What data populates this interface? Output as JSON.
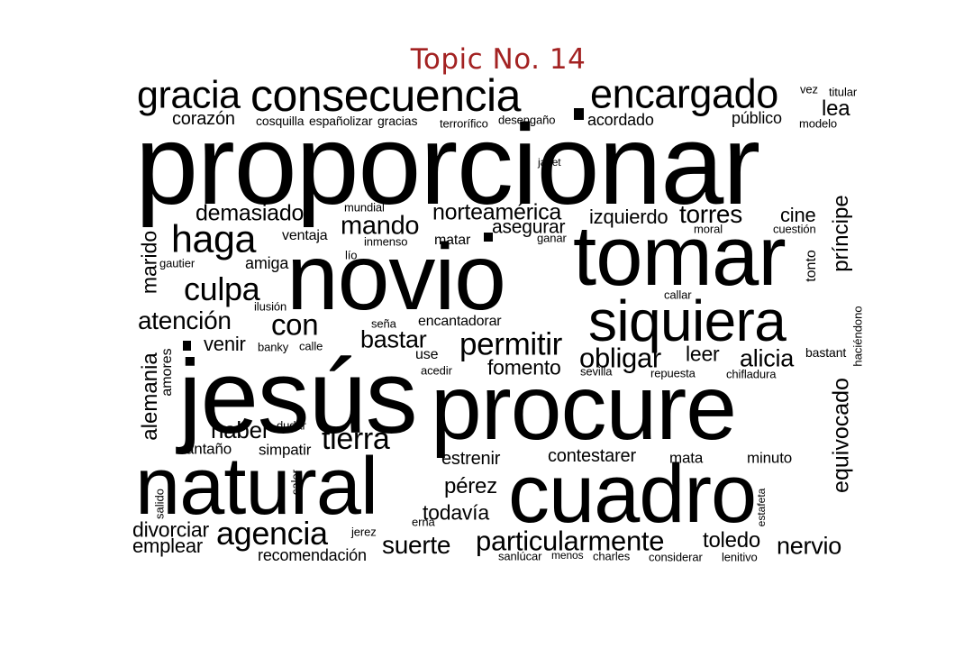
{
  "title": "Topic No. 14",
  "cloud": {
    "words": [
      {
        "text": "proporcionar"
      },
      {
        "text": "novio"
      },
      {
        "text": "tomar"
      },
      {
        "text": "jesús"
      },
      {
        "text": "procure"
      },
      {
        "text": "natural"
      },
      {
        "text": "cuadro"
      },
      {
        "text": "siquiera"
      },
      {
        "text": "consecuencia"
      },
      {
        "text": "encargado"
      },
      {
        "text": "gracia"
      },
      {
        "text": "haga"
      },
      {
        "text": "culpa"
      },
      {
        "text": "permitir"
      },
      {
        "text": "agencia"
      },
      {
        "text": "tierra"
      },
      {
        "text": "particularmente"
      },
      {
        "text": "con"
      },
      {
        "text": "mando"
      },
      {
        "text": "obligar"
      },
      {
        "text": "alicia"
      },
      {
        "text": "atención"
      },
      {
        "text": "bastar"
      },
      {
        "text": "suerte"
      },
      {
        "text": "nervio"
      },
      {
        "text": "norteamérica"
      },
      {
        "text": "torres"
      },
      {
        "text": "demasiado"
      },
      {
        "text": "izquierdo"
      },
      {
        "text": "asegurar"
      },
      {
        "text": "cine"
      },
      {
        "text": "fomento"
      },
      {
        "text": "haber"
      },
      {
        "text": "toledo"
      },
      {
        "text": "pérez"
      },
      {
        "text": "todavía"
      },
      {
        "text": "divorciar"
      },
      {
        "text": "emplear"
      },
      {
        "text": "venir"
      },
      {
        "text": "leer"
      },
      {
        "text": "estrenir"
      },
      {
        "text": "contestarer"
      },
      {
        "text": "lea"
      },
      {
        "text": "corazón"
      },
      {
        "text": "amiga"
      },
      {
        "text": "ventaja"
      },
      {
        "text": "matar"
      },
      {
        "text": "encantadorar"
      },
      {
        "text": "antaño"
      },
      {
        "text": "simpatir"
      },
      {
        "text": "mata"
      },
      {
        "text": "minuto"
      },
      {
        "text": "recomendación"
      },
      {
        "text": "acordado"
      },
      {
        "text": "público"
      },
      {
        "text": "vez"
      },
      {
        "text": "titular"
      },
      {
        "text": "modelo"
      },
      {
        "text": "desengaño"
      },
      {
        "text": "terrorífico"
      },
      {
        "text": "cosquilla"
      },
      {
        "text": "españolizar"
      },
      {
        "text": "gracias"
      },
      {
        "text": "janet"
      },
      {
        "text": "mundial"
      },
      {
        "text": "inmenso"
      },
      {
        "text": "ganar"
      },
      {
        "text": "moral"
      },
      {
        "text": "cuestión"
      },
      {
        "text": "gautier"
      },
      {
        "text": "lío"
      },
      {
        "text": "callar"
      },
      {
        "text": "ilusión"
      },
      {
        "text": "seña"
      },
      {
        "text": "banky"
      },
      {
        "text": "calle"
      },
      {
        "text": "use"
      },
      {
        "text": "acedir"
      },
      {
        "text": "sevilla"
      },
      {
        "text": "repuesta"
      },
      {
        "text": "chifladura"
      },
      {
        "text": "bastant"
      },
      {
        "text": "dudar"
      },
      {
        "text": "jerez"
      },
      {
        "text": "erna"
      },
      {
        "text": "sanlúcar"
      },
      {
        "text": "menos"
      },
      {
        "text": "charles"
      },
      {
        "text": "considerar"
      },
      {
        "text": "lenitivo"
      },
      {
        "text": "marido"
      },
      {
        "text": "alemania"
      },
      {
        "text": "amores"
      },
      {
        "text": "salido"
      },
      {
        "text": "calor"
      },
      {
        "text": "príncipe"
      },
      {
        "text": "tonto"
      },
      {
        "text": "equivocado"
      },
      {
        "text": "haciéndono"
      },
      {
        "text": "estafeta"
      }
    ]
  }
}
